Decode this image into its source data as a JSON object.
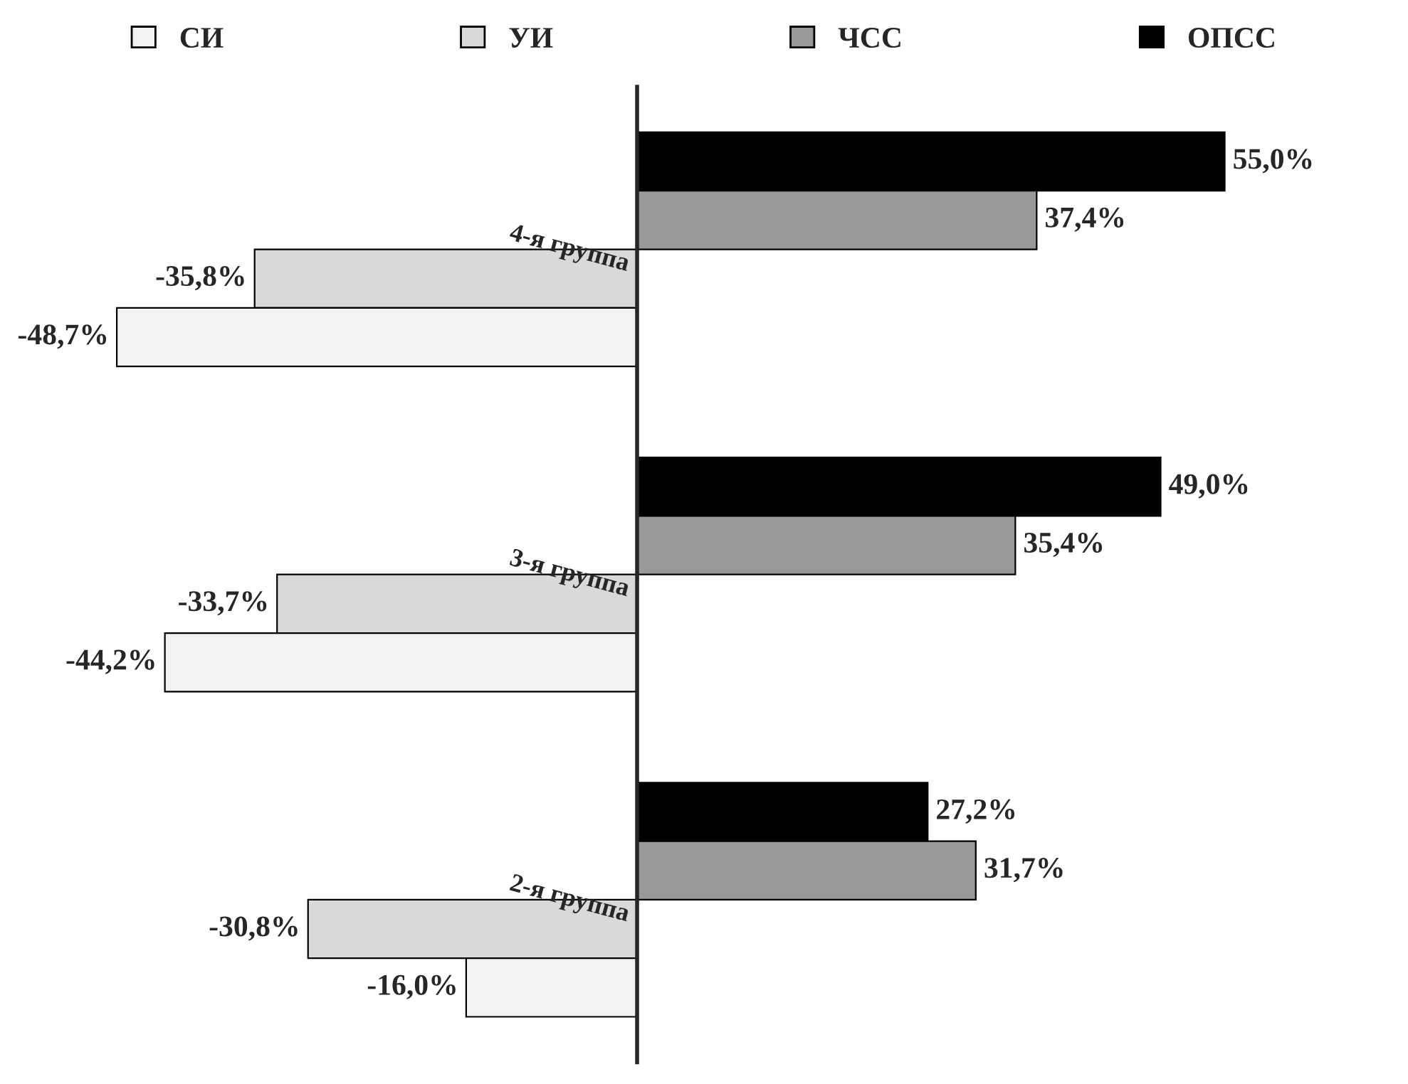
{
  "chart_data": {
    "type": "bar",
    "orientation": "horizontal",
    "legend": "top",
    "categories": [
      "4-я группа",
      "3-я группа",
      "2-я группа"
    ],
    "series": [
      {
        "name": "ОПСС",
        "color": "#000000",
        "values": [
          55.0,
          49.0,
          27.2
        ],
        "value_labels": [
          "55,0%",
          "49,0%",
          "27,2%"
        ]
      },
      {
        "name": "ЧСС",
        "color": "#999999",
        "values": [
          37.4,
          35.4,
          31.7
        ],
        "value_labels": [
          "37,4%",
          "35,4%",
          "31,7%"
        ]
      },
      {
        "name": "УИ",
        "color": "#d9d9d9",
        "values": [
          -35.8,
          -33.7,
          -30.8
        ],
        "value_labels": [
          "-35,8%",
          "-33,7%",
          "-30,8%"
        ]
      },
      {
        "name": "СИ",
        "color": "#f2f2f2",
        "values": [
          -48.7,
          -44.2,
          -16.0
        ],
        "value_labels": [
          "-48,7%",
          "-44,2%",
          "-16,0%"
        ]
      }
    ]
  }
}
